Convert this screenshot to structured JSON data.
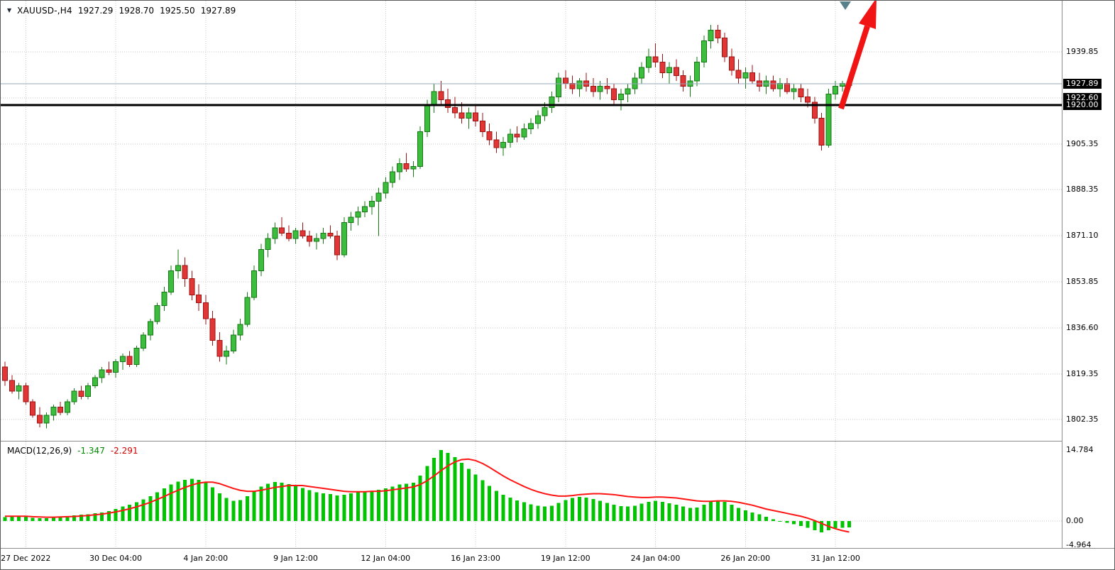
{
  "header": {
    "dropdown_icon": "▼",
    "symbol": "XAUUSD-,H4",
    "open": "1927.29",
    "high": "1928.70",
    "low": "1925.50",
    "close": "1927.89"
  },
  "indicator_label": {
    "name": "MACD(12,26,9)",
    "macd_value": "-1.347",
    "signal_value": "-2.291"
  },
  "colors": {
    "bull": "#3dbd3d",
    "bull_stroke": "#157815",
    "bear": "#e13636",
    "bear_stroke": "#9e1111",
    "histogram": "#00c400",
    "signal": "#ff1414",
    "grid": "#c8c8c8",
    "bid_line": "#93a8bb",
    "black_line": "#000000",
    "arrow": "#f01414",
    "marker": "#57808a",
    "highlight_bg": "#000000",
    "highlight_fg": "#ffffff"
  },
  "chart_data": {
    "type": "candlestick",
    "symbol": "XAUUSD-",
    "timeframe": "H4",
    "title": "XAUUSD-,H4 1927.29 1928.70 1925.50 1927.89",
    "price_axis": {
      "ylim": [
        1796,
        1952
      ],
      "gridline_values": [
        1939.85,
        1922.6,
        1905.35,
        1888.35,
        1871.1,
        1853.85,
        1836.6,
        1819.35,
        1802.35
      ],
      "labels": [
        {
          "text": "1939.85",
          "value": 1939.85,
          "highlighted": false
        },
        {
          "text": "1927.89",
          "value": 1927.89,
          "highlighted": true
        },
        {
          "text": "1922.60",
          "value": 1922.6,
          "highlighted": true
        },
        {
          "text": "1920.00",
          "value": 1920.0,
          "highlighted": true
        },
        {
          "text": "1905.35",
          "value": 1905.35,
          "highlighted": false
        },
        {
          "text": "1888.35",
          "value": 1888.35,
          "highlighted": false
        },
        {
          "text": "1871.10",
          "value": 1871.1,
          "highlighted": false
        },
        {
          "text": "1853.85",
          "value": 1853.85,
          "highlighted": false
        },
        {
          "text": "1836.60",
          "value": 1836.6,
          "highlighted": false
        },
        {
          "text": "1819.35",
          "value": 1819.35,
          "highlighted": false
        },
        {
          "text": "1802.35",
          "value": 1802.35,
          "highlighted": false
        }
      ]
    },
    "time_axis": {
      "ticks": [
        {
          "label": "27 Dec 2022",
          "index": 3
        },
        {
          "label": "30 Dec 04:00",
          "index": 16
        },
        {
          "label": "4 Jan 20:00",
          "index": 29
        },
        {
          "label": "9 Jan 12:00",
          "index": 42
        },
        {
          "label": "12 Jan 04:00",
          "index": 55
        },
        {
          "label": "16 Jan 23:00",
          "index": 68
        },
        {
          "label": "19 Jan 12:00",
          "index": 81
        },
        {
          "label": "24 Jan 04:00",
          "index": 94
        },
        {
          "label": "26 Jan 20:00",
          "index": 107
        },
        {
          "label": "31 Jan 12:00",
          "index": 120
        }
      ]
    },
    "horizontal_lines": [
      {
        "name": "bid-price-line",
        "value": 1927.89,
        "color": "#93a8bb",
        "width": 1
      },
      {
        "name": "support-line-1920",
        "value": 1920.0,
        "color": "#000000",
        "width": 3
      }
    ],
    "candles": [
      [
        1822,
        1824,
        1815,
        1817
      ],
      [
        1817,
        1819,
        1812,
        1813
      ],
      [
        1813,
        1816,
        1810,
        1815
      ],
      [
        1815,
        1816,
        1808,
        1809
      ],
      [
        1809,
        1810,
        1803,
        1804
      ],
      [
        1804,
        1807,
        1799.5,
        1801
      ],
      [
        1801,
        1805,
        1799,
        1804
      ],
      [
        1804,
        1808,
        1802,
        1807
      ],
      [
        1807,
        1809,
        1804,
        1805
      ],
      [
        1805,
        1810,
        1804,
        1809
      ],
      [
        1809,
        1814,
        1808,
        1813
      ],
      [
        1813,
        1815,
        1810,
        1811
      ],
      [
        1811,
        1816,
        1810,
        1815
      ],
      [
        1815,
        1819,
        1814,
        1818
      ],
      [
        1818,
        1822,
        1816,
        1821
      ],
      [
        1821,
        1824,
        1819,
        1820
      ],
      [
        1820,
        1825,
        1818,
        1824
      ],
      [
        1824,
        1827,
        1821,
        1826
      ],
      [
        1826,
        1828,
        1822,
        1823
      ],
      [
        1823,
        1830,
        1822,
        1829
      ],
      [
        1829,
        1835,
        1828,
        1834
      ],
      [
        1834,
        1840,
        1832,
        1839
      ],
      [
        1839,
        1846,
        1838,
        1845
      ],
      [
        1845,
        1852,
        1843,
        1850
      ],
      [
        1850,
        1860,
        1849,
        1858
      ],
      [
        1858,
        1866,
        1855,
        1860
      ],
      [
        1860,
        1863,
        1852,
        1855
      ],
      [
        1855,
        1858,
        1847,
        1849
      ],
      [
        1849,
        1853,
        1843,
        1846
      ],
      [
        1846,
        1849,
        1838,
        1840
      ],
      [
        1840,
        1843,
        1830,
        1832
      ],
      [
        1832,
        1835,
        1824,
        1826
      ],
      [
        1826,
        1830,
        1823,
        1828
      ],
      [
        1828,
        1836,
        1827,
        1834
      ],
      [
        1834,
        1840,
        1832,
        1838
      ],
      [
        1838,
        1850,
        1837,
        1848
      ],
      [
        1848,
        1860,
        1847,
        1858
      ],
      [
        1858,
        1868,
        1856,
        1866
      ],
      [
        1866,
        1872,
        1863,
        1870
      ],
      [
        1870,
        1876,
        1868,
        1874
      ],
      [
        1874,
        1878,
        1871,
        1872
      ],
      [
        1872,
        1875,
        1869,
        1870
      ],
      [
        1870,
        1874,
        1868,
        1873
      ],
      [
        1873,
        1876,
        1870,
        1871
      ],
      [
        1871,
        1873,
        1867,
        1869
      ],
      [
        1869,
        1872,
        1866,
        1870
      ],
      [
        1870,
        1874,
        1868,
        1872
      ],
      [
        1872,
        1875,
        1870,
        1871
      ],
      [
        1871,
        1873,
        1862,
        1864
      ],
      [
        1864,
        1878,
        1863,
        1876
      ],
      [
        1876,
        1880,
        1873,
        1878
      ],
      [
        1878,
        1882,
        1875,
        1880
      ],
      [
        1880,
        1884,
        1878,
        1882
      ],
      [
        1882,
        1886,
        1879,
        1884
      ],
      [
        1884,
        1889,
        1871,
        1887
      ],
      [
        1887,
        1893,
        1885,
        1891
      ],
      [
        1891,
        1897,
        1889,
        1895
      ],
      [
        1895,
        1900,
        1892,
        1898
      ],
      [
        1898,
        1902,
        1895,
        1896
      ],
      [
        1896,
        1899,
        1893,
        1897
      ],
      [
        1897,
        1912,
        1896,
        1910
      ],
      [
        1910,
        1922,
        1908,
        1920
      ],
      [
        1920,
        1928,
        1917,
        1925
      ],
      [
        1925,
        1929,
        1920,
        1922
      ],
      [
        1922,
        1926,
        1917,
        1919
      ],
      [
        1919,
        1923,
        1915,
        1917
      ],
      [
        1917,
        1921,
        1913,
        1915
      ],
      [
        1915,
        1919,
        1911,
        1917
      ],
      [
        1917,
        1920,
        1912,
        1914
      ],
      [
        1914,
        1917,
        1908,
        1910
      ],
      [
        1910,
        1913,
        1905,
        1907
      ],
      [
        1907,
        1910,
        1902,
        1904
      ],
      [
        1904,
        1908,
        1901,
        1906
      ],
      [
        1906,
        1911,
        1904,
        1909
      ],
      [
        1909,
        1912,
        1906,
        1908
      ],
      [
        1908,
        1913,
        1907,
        1911
      ],
      [
        1911,
        1915,
        1909,
        1913
      ],
      [
        1913,
        1918,
        1911,
        1916
      ],
      [
        1916,
        1921,
        1914,
        1919
      ],
      [
        1919,
        1925,
        1917,
        1923
      ],
      [
        1923,
        1932,
        1921,
        1930
      ],
      [
        1930,
        1933,
        1926,
        1928
      ],
      [
        1928,
        1931,
        1924,
        1926
      ],
      [
        1926,
        1930,
        1923,
        1929
      ],
      [
        1929,
        1932,
        1925,
        1927
      ],
      [
        1927,
        1930,
        1923,
        1925
      ],
      [
        1925,
        1929,
        1922,
        1927
      ],
      [
        1927,
        1930,
        1924,
        1926
      ],
      [
        1926,
        1928,
        1920,
        1922
      ],
      [
        1922,
        1926,
        1918,
        1924
      ],
      [
        1924,
        1928,
        1921,
        1926
      ],
      [
        1926,
        1932,
        1924,
        1930
      ],
      [
        1930,
        1936,
        1928,
        1934
      ],
      [
        1934,
        1941,
        1932,
        1938
      ],
      [
        1938,
        1943,
        1934,
        1936
      ],
      [
        1936,
        1939,
        1930,
        1932
      ],
      [
        1932,
        1936,
        1928,
        1934
      ],
      [
        1934,
        1937,
        1929,
        1931
      ],
      [
        1931,
        1933,
        1925,
        1927
      ],
      [
        1927,
        1931,
        1923,
        1929
      ],
      [
        1929,
        1938,
        1927,
        1936
      ],
      [
        1936,
        1946,
        1934,
        1944
      ],
      [
        1944,
        1950,
        1941,
        1948
      ],
      [
        1948,
        1950,
        1943,
        1945
      ],
      [
        1945,
        1947,
        1936,
        1938
      ],
      [
        1938,
        1941,
        1931,
        1933
      ],
      [
        1933,
        1937,
        1928,
        1930
      ],
      [
        1930,
        1934,
        1926,
        1932
      ],
      [
        1932,
        1935,
        1928,
        1929
      ],
      [
        1929,
        1932,
        1925,
        1927
      ],
      [
        1927,
        1931,
        1924,
        1929
      ],
      [
        1929,
        1931,
        1925,
        1926
      ],
      [
        1926,
        1930,
        1923,
        1928
      ],
      [
        1928,
        1930,
        1924,
        1925
      ],
      [
        1925,
        1928,
        1922,
        1926
      ],
      [
        1926,
        1928,
        1921,
        1923
      ],
      [
        1923,
        1926,
        1919,
        1921
      ],
      [
        1921,
        1923,
        1913,
        1915
      ],
      [
        1915,
        1917,
        1903,
        1905
      ],
      [
        1905,
        1926,
        1904,
        1924
      ],
      [
        1924,
        1929,
        1922,
        1927
      ],
      [
        1927,
        1929,
        1925,
        1928
      ],
      [
        1927.29,
        1928.7,
        1925.5,
        1927.89
      ]
    ],
    "indicator": {
      "name": "MACD(12,26,9)",
      "macd_value": -1.347,
      "signal_value": -2.291,
      "axis_labels": [
        {
          "text": "14.784",
          "value": 14.784,
          "grid": false
        },
        {
          "text": "0.00",
          "value": 0,
          "grid": true
        },
        {
          "text": "-4.964",
          "value": -4.964,
          "grid": false
        }
      ],
      "histogram": [
        0.8,
        0.9,
        1.0,
        0.9,
        0.7,
        0.6,
        0.6,
        0.8,
        0.9,
        1.0,
        1.2,
        1.3,
        1.4,
        1.6,
        1.8,
        2.1,
        2.5,
        3.0,
        3.4,
        3.9,
        4.5,
        5.2,
        6.0,
        6.8,
        7.6,
        8.2,
        8.6,
        8.8,
        8.6,
        8.0,
        7.0,
        5.8,
        4.8,
        4.2,
        4.4,
        5.2,
        6.2,
        7.2,
        7.8,
        8.1,
        8.0,
        7.7,
        7.3,
        6.9,
        6.4,
        6.0,
        5.8,
        5.6,
        5.3,
        5.5,
        5.8,
        6.0,
        6.2,
        6.3,
        6.5,
        6.8,
        7.2,
        7.6,
        7.8,
        8.0,
        9.5,
        11.5,
        13.2,
        14.784,
        14.2,
        13.3,
        12.1,
        10.9,
        9.7,
        8.5,
        7.3,
        6.3,
        5.5,
        4.9,
        4.3,
        3.9,
        3.5,
        3.2,
        3.0,
        3.2,
        3.8,
        4.4,
        4.8,
        5.0,
        4.9,
        4.6,
        4.2,
        3.8,
        3.4,
        3.1,
        3.0,
        3.2,
        3.6,
        4.0,
        4.2,
        4.0,
        3.7,
        3.4,
        3.0,
        2.7,
        2.8,
        3.4,
        4.0,
        4.3,
        4.0,
        3.4,
        2.7,
        2.2,
        1.8,
        1.4,
        0.9,
        0.4,
        -0.1,
        -0.4,
        -0.7,
        -1.0,
        -1.4,
        -1.9,
        -2.4,
        -1.9,
        -1.5,
        -1.4,
        -1.347
      ],
      "signal": [
        1.0,
        1.0,
        1.0,
        1.0,
        0.9,
        0.85,
        0.8,
        0.8,
        0.85,
        0.9,
        0.95,
        1.05,
        1.15,
        1.3,
        1.45,
        1.65,
        1.9,
        2.2,
        2.55,
        2.95,
        3.4,
        3.9,
        4.5,
        5.1,
        5.8,
        6.4,
        7.0,
        7.5,
        7.9,
        8.1,
        8.1,
        7.8,
        7.3,
        6.8,
        6.4,
        6.2,
        6.2,
        6.4,
        6.7,
        7.0,
        7.2,
        7.4,
        7.4,
        7.4,
        7.2,
        7.0,
        6.8,
        6.6,
        6.4,
        6.2,
        6.1,
        6.1,
        6.1,
        6.2,
        6.2,
        6.3,
        6.5,
        6.7,
        6.9,
        7.1,
        7.6,
        8.4,
        9.4,
        10.5,
        11.5,
        12.3,
        12.8,
        12.9,
        12.6,
        12.0,
        11.2,
        10.3,
        9.4,
        8.6,
        7.9,
        7.2,
        6.6,
        6.1,
        5.7,
        5.4,
        5.2,
        5.2,
        5.3,
        5.5,
        5.6,
        5.7,
        5.7,
        5.6,
        5.5,
        5.3,
        5.1,
        5.0,
        4.9,
        4.9,
        5.0,
        5.0,
        4.9,
        4.8,
        4.6,
        4.4,
        4.2,
        4.1,
        4.1,
        4.2,
        4.2,
        4.1,
        3.9,
        3.6,
        3.3,
        2.9,
        2.5,
        2.2,
        1.9,
        1.6,
        1.3,
        1.0,
        0.6,
        0.1,
        -0.5,
        -1.1,
        -1.6,
        -2.0,
        -2.291
      ]
    },
    "annotations": {
      "red_arrow": {
        "shaft": [
          [
            1184,
            152
          ],
          [
            1221,
            36
          ]
        ],
        "head": [
          [
            1234,
            -4
          ],
          [
            1233,
            40
          ],
          [
            1209,
            32
          ]
        ],
        "width": 8,
        "color": "#f01414"
      },
      "teal_triangle": {
        "points": [
          [
            1182,
            1
          ],
          [
            1198,
            1
          ],
          [
            1190,
            13
          ]
        ],
        "color": "#57808a"
      }
    }
  }
}
